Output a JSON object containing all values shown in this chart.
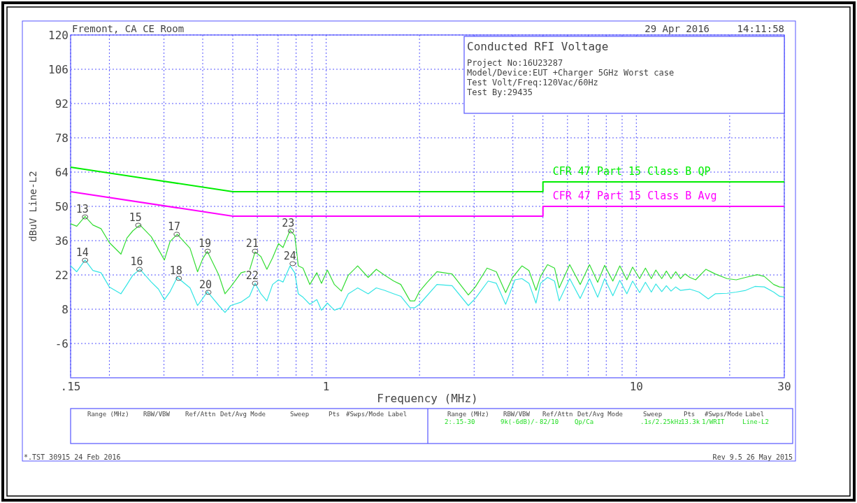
{
  "chart_data": {
    "type": "line",
    "title": "Conducted RFI Voltage",
    "xlabel": "Frequency (MHz)",
    "ylabel": "dBuV Line-L2",
    "log": "x",
    "grid": true,
    "marker": "none",
    "line_style": "solid",
    "xlim": [
      0.15,
      30
    ],
    "ylim": [
      -20,
      120
    ],
    "xticks": [
      {
        "value": 0.15,
        "label": ".15"
      },
      {
        "value": 0.2,
        "label": null
      },
      {
        "value": 0.3,
        "label": null
      },
      {
        "value": 0.4,
        "label": null
      },
      {
        "value": 0.5,
        "label": null
      },
      {
        "value": 0.6,
        "label": null
      },
      {
        "value": 0.7,
        "label": null
      },
      {
        "value": 0.8,
        "label": null
      },
      {
        "value": 0.9,
        "label": null
      },
      1,
      {
        "value": 2,
        "label": null
      },
      {
        "value": 3,
        "label": null
      },
      {
        "value": 4,
        "label": null
      },
      {
        "value": 5,
        "label": null
      },
      {
        "value": 6,
        "label": null
      },
      {
        "value": 7,
        "label": null
      },
      {
        "value": 8,
        "label": null
      },
      {
        "value": 9,
        "label": null
      },
      10,
      {
        "value": 20,
        "label": null
      },
      30
    ],
    "yticks": [
      -6,
      8,
      22,
      36,
      50,
      64,
      78,
      92,
      106,
      120
    ],
    "annotations": [
      "Fremont, CA CE Room",
      "29 Apr 2016",
      "14:11:58",
      "Project No:16U23287",
      "Model/Device:EUT +Charger 5GHz Worst case",
      "Test Volt/Freq:120Vac/60Hz",
      "Test By:29435",
      "Range (MHz)",
      "RBW/VBW",
      "Ref/Attn",
      "Det/Avg Mode",
      "Sweep",
      "Pts",
      "#Swps/Mode",
      "Label",
      "Range (MHz)",
      "RBW/VBW",
      "Ref/Attn",
      "Det/Avg Mode",
      "Sweep",
      "Pts",
      "#Swps/Mode",
      "Label",
      "2:.15-30",
      "9k(-6dB)/-",
      "82/10",
      "Qp/Ca",
      ".1s/2.25kHz",
      "13.3k",
      "1/WRIT",
      "Line-L2",
      "*.TST 30915 24 Feb 2016",
      "Rev 9.5 26 May 2015",
      {
        "text": "13",
        "x": 0.167,
        "y": 45.7
      },
      {
        "text": "14",
        "x": 0.167,
        "y": 28
      },
      {
        "text": "15",
        "x": 0.248,
        "y": 42.3
      },
      {
        "text": "16",
        "x": 0.25,
        "y": 24.3
      },
      {
        "text": "17",
        "x": 0.33,
        "y": 38.6
      },
      {
        "text": "18",
        "x": 0.335,
        "y": 20.6
      },
      {
        "text": "19",
        "x": 0.415,
        "y": 31.7
      },
      {
        "text": "20",
        "x": 0.417,
        "y": 14.9
      },
      {
        "text": "21",
        "x": 0.59,
        "y": 31.7
      },
      {
        "text": "22",
        "x": 0.59,
        "y": 18.6
      },
      {
        "text": "23",
        "x": 0.77,
        "y": 40
      },
      {
        "text": "24",
        "x": 0.78,
        "y": 26.6
      }
    ],
    "series": [
      {
        "name": "CFR 47 Part 15 Class B QP",
        "color": "#00ee00",
        "x": [
          0.15,
          0.5,
          5,
          5,
          30
        ],
        "values": [
          66,
          56,
          56,
          60,
          60
        ]
      },
      {
        "name": "CFR 47 Part 15 Class B Avg",
        "color": "#ff00ff",
        "x": [
          0.15,
          0.5,
          5,
          5,
          30
        ],
        "values": [
          56,
          46,
          46,
          50,
          50
        ]
      },
      {
        "color": "#33dd33",
        "x": [
          0.15,
          0.157,
          0.167,
          0.177,
          0.188,
          0.2,
          0.218,
          0.228,
          0.238,
          0.251,
          0.273,
          0.288,
          0.301,
          0.314,
          0.331,
          0.364,
          0.385,
          0.4,
          0.414,
          0.451,
          0.472,
          0.492,
          0.532,
          0.566,
          0.59,
          0.616,
          0.644,
          0.672,
          0.702,
          0.726,
          0.765,
          0.792,
          0.813,
          0.842,
          0.886,
          0.933,
          0.966,
          1.009,
          1.063,
          1.12,
          1.179,
          1.264,
          1.366,
          1.451,
          1.542,
          1.652,
          1.74,
          1.865,
          1.93,
          1.998,
          2.105,
          2.276,
          2.547,
          2.874,
          3.027,
          3.302,
          3.537,
          3.79,
          3.992,
          4.278,
          4.507,
          4.747,
          4.912,
          5.173,
          5.449,
          5.641,
          6.099,
          6.593,
          7.065,
          7.506,
          7.905,
          8.4,
          8.847,
          9.321,
          9.729,
          10.25,
          10.7,
          11.18,
          11.56,
          12.08,
          12.5,
          12.94,
          13.4,
          13.87,
          14.36,
          14.87,
          15.53,
          16.77,
          17.97,
          19.61,
          21.0,
          22.52,
          24.54,
          25.86,
          27.72,
          28.94,
          30
        ],
        "values": [
          42.9,
          41.9,
          45.9,
          42.4,
          40.9,
          35.2,
          30.5,
          37.1,
          40.0,
          42.4,
          37.6,
          32.4,
          28.1,
          35.7,
          38.6,
          32.9,
          23.3,
          28.6,
          31.6,
          21.9,
          14.3,
          17.1,
          22.9,
          23.8,
          31.4,
          29.5,
          24.3,
          29.0,
          34.8,
          33.2,
          40.2,
          38.1,
          25.7,
          24.8,
          18.1,
          22.9,
          18.6,
          24.0,
          18.1,
          15.4,
          21.9,
          25.7,
          21.0,
          24.3,
          21.9,
          19.5,
          18.1,
          11.4,
          11.4,
          15.2,
          18.6,
          23.3,
          22.4,
          13.8,
          17.1,
          24.8,
          23.3,
          14.8,
          21.0,
          25.7,
          23.8,
          15.7,
          21.4,
          26.2,
          24.8,
          16.7,
          26.2,
          18.1,
          26.2,
          19.0,
          25.9,
          19.5,
          25.7,
          20.0,
          25.2,
          20.5,
          24.8,
          20.5,
          24.0,
          20.5,
          23.6,
          20.5,
          23.3,
          20.5,
          22.4,
          21.0,
          20.0,
          24.3,
          22.4,
          20.5,
          20.0,
          21.0,
          22.1,
          21.4,
          18.1,
          17.1,
          16.9
        ]
      },
      {
        "color": "#33e5e5",
        "x": [
          0.15,
          0.157,
          0.167,
          0.177,
          0.188,
          0.2,
          0.218,
          0.228,
          0.238,
          0.251,
          0.273,
          0.288,
          0.301,
          0.314,
          0.331,
          0.364,
          0.385,
          0.4,
          0.414,
          0.451,
          0.472,
          0.492,
          0.532,
          0.566,
          0.59,
          0.616,
          0.644,
          0.672,
          0.702,
          0.726,
          0.765,
          0.792,
          0.813,
          0.842,
          0.886,
          0.933,
          0.966,
          1.009,
          1.063,
          1.12,
          1.179,
          1.264,
          1.366,
          1.451,
          1.542,
          1.652,
          1.74,
          1.865,
          1.93,
          1.998,
          2.276,
          2.547,
          2.874,
          3.027,
          3.329,
          3.537,
          3.79,
          4.062,
          4.278,
          4.507,
          4.747,
          4.912,
          5.173,
          5.449,
          5.641,
          6.099,
          6.593,
          7.065,
          7.506,
          7.905,
          8.4,
          8.847,
          9.321,
          9.729,
          10.25,
          10.7,
          11.18,
          11.56,
          12.08,
          12.5,
          12.94,
          13.4,
          13.87,
          14.87,
          15.93,
          17.07,
          17.97,
          19.61,
          21.0,
          22.52,
          24.12,
          25.86,
          27.72,
          28.94,
          30
        ],
        "values": [
          25.7,
          23.3,
          28.1,
          23.8,
          22.9,
          17.1,
          14.3,
          18.1,
          21.9,
          24.3,
          19.1,
          16.2,
          11.9,
          15.2,
          21.0,
          16.7,
          9.5,
          12.4,
          15.2,
          9.5,
          6.7,
          9.5,
          10.9,
          13.3,
          18.6,
          14.3,
          11.4,
          18.1,
          20.0,
          19.1,
          25.7,
          22.9,
          14.3,
          12.9,
          10.0,
          11.9,
          7.6,
          10.5,
          7.6,
          8.6,
          14.3,
          16.7,
          14.3,
          16.7,
          15.7,
          14.3,
          13.3,
          8.6,
          8.6,
          10.0,
          18.1,
          17.6,
          9.5,
          12.4,
          19.5,
          18.6,
          10.0,
          20.0,
          20.5,
          18.6,
          10.5,
          18.6,
          21.0,
          19.5,
          11.4,
          20.5,
          12.4,
          20.5,
          12.9,
          20.5,
          13.5,
          19.8,
          14.3,
          19.5,
          14.8,
          19.0,
          15.0,
          18.3,
          15.2,
          17.6,
          15.4,
          17.1,
          15.7,
          16.2,
          15.0,
          12.2,
          14.3,
          14.5,
          15.0,
          15.7,
          17.3,
          17.1,
          15.0,
          13.3,
          13.0
        ]
      },
      {
        "type": "scatter",
        "marker": "circle",
        "color": "#555555",
        "x": [
          0.167,
          0.167,
          0.248,
          0.25,
          0.33,
          0.335,
          0.415,
          0.417,
          0.59,
          0.59,
          0.77,
          0.78
        ],
        "values": [
          45.7,
          28,
          42.3,
          24.3,
          38.6,
          20.6,
          31.7,
          14.9,
          31.7,
          18.6,
          40,
          26.6
        ]
      }
    ]
  }
}
